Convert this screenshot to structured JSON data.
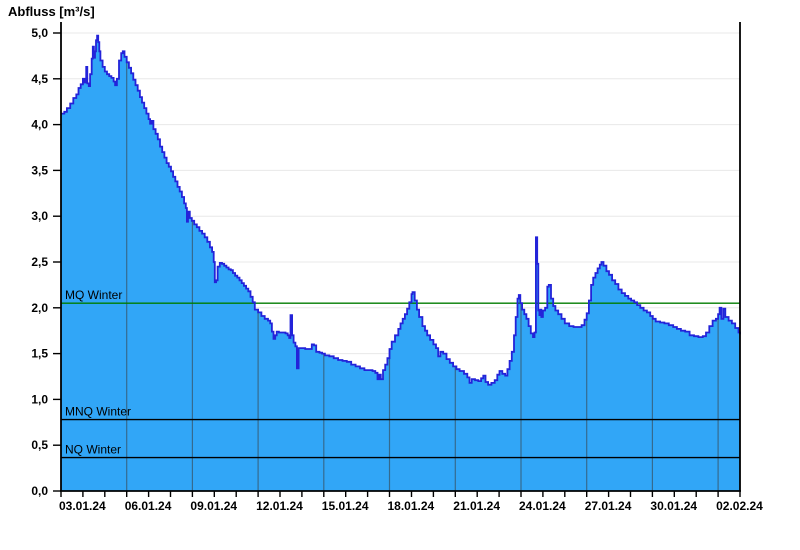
{
  "title": "Abfluss [m³/s]",
  "colors": {
    "fill": "#31a6f7",
    "line": "#2323d9",
    "grid_light": "#e8e8e8",
    "grid_vertical": "#3a3a3a",
    "axis": "#000000",
    "mq_line": "#007c00",
    "stat_line": "#000000"
  },
  "y_axis": {
    "tick_labels": [
      "0,0",
      "0,5",
      "1,0",
      "1,5",
      "2,0",
      "2,5",
      "3,0",
      "3,5",
      "4,0",
      "4,5",
      "5,0"
    ],
    "tick_values": [
      0,
      0.5,
      1,
      1.5,
      2,
      2.5,
      3,
      3.5,
      4,
      4.5,
      5
    ]
  },
  "x_axis": {
    "labels": [
      "03.01.24",
      "06.01.24",
      "09.01.24",
      "12.01.24",
      "15.01.24",
      "18.01.24",
      "21.01.24",
      "24.01.24",
      "27.01.24",
      "30.01.24",
      "02.02.24"
    ],
    "label_days": [
      0,
      3,
      6,
      9,
      12,
      15,
      18,
      21,
      24,
      27,
      30
    ],
    "total_days": 31
  },
  "chart_data": {
    "type": "area",
    "title": "Abfluss [m³/s]",
    "ylabel": "Abfluss [m³/s]",
    "xlabel": "",
    "ylim": [
      0,
      5
    ],
    "x_range_days": [
      0,
      31
    ],
    "x_start_date": "03.01.24",
    "grid": true,
    "interpolation": "step-after",
    "reference_lines": [
      {
        "id": "mq",
        "label": "MQ Winter",
        "value": 2.05,
        "color": "#007c00"
      },
      {
        "id": "mnq",
        "label": "MNQ Winter",
        "value": 0.78,
        "color": "#000000"
      },
      {
        "id": "nq",
        "label": "NQ Winter",
        "value": 0.365,
        "color": "#000000"
      }
    ],
    "series_name": "Abfluss",
    "points": [
      [
        0.0,
        4.12
      ],
      [
        0.15,
        4.14
      ],
      [
        0.27,
        4.18
      ],
      [
        0.42,
        4.23
      ],
      [
        0.56,
        4.29
      ],
      [
        0.7,
        4.33
      ],
      [
        0.8,
        4.4
      ],
      [
        0.9,
        4.44
      ],
      [
        1.0,
        4.5
      ],
      [
        1.08,
        4.46
      ],
      [
        1.15,
        4.63
      ],
      [
        1.2,
        4.45
      ],
      [
        1.27,
        4.42
      ],
      [
        1.33,
        4.55
      ],
      [
        1.4,
        4.72
      ],
      [
        1.45,
        4.85
      ],
      [
        1.5,
        4.73
      ],
      [
        1.55,
        4.8
      ],
      [
        1.6,
        4.92
      ],
      [
        1.65,
        4.97
      ],
      [
        1.7,
        4.9
      ],
      [
        1.75,
        4.8
      ],
      [
        1.8,
        4.7
      ],
      [
        1.9,
        4.63
      ],
      [
        2.0,
        4.58
      ],
      [
        2.1,
        4.55
      ],
      [
        2.2,
        4.53
      ],
      [
        2.3,
        4.51
      ],
      [
        2.4,
        4.47
      ],
      [
        2.47,
        4.43
      ],
      [
        2.55,
        4.5
      ],
      [
        2.65,
        4.7
      ],
      [
        2.75,
        4.78
      ],
      [
        2.82,
        4.8
      ],
      [
        2.9,
        4.74
      ],
      [
        3.0,
        4.68
      ],
      [
        3.1,
        4.62
      ],
      [
        3.2,
        4.56
      ],
      [
        3.3,
        4.49
      ],
      [
        3.4,
        4.43
      ],
      [
        3.5,
        4.37
      ],
      [
        3.6,
        4.3
      ],
      [
        3.7,
        4.24
      ],
      [
        3.8,
        4.18
      ],
      [
        3.9,
        4.12
      ],
      [
        4.0,
        4.06
      ],
      [
        4.07,
        4.01
      ],
      [
        4.14,
        4.04
      ],
      [
        4.22,
        3.95
      ],
      [
        4.32,
        3.9
      ],
      [
        4.42,
        3.84
      ],
      [
        4.52,
        3.76
      ],
      [
        4.62,
        3.7
      ],
      [
        4.72,
        3.64
      ],
      [
        4.82,
        3.58
      ],
      [
        4.92,
        3.54
      ],
      [
        5.02,
        3.49
      ],
      [
        5.12,
        3.43
      ],
      [
        5.22,
        3.38
      ],
      [
        5.32,
        3.32
      ],
      [
        5.42,
        3.27
      ],
      [
        5.52,
        3.21
      ],
      [
        5.62,
        3.14
      ],
      [
        5.7,
        3.09
      ],
      [
        5.75,
        2.94
      ],
      [
        5.8,
        3.05
      ],
      [
        5.88,
        2.98
      ],
      [
        5.97,
        2.95
      ],
      [
        6.08,
        2.91
      ],
      [
        6.2,
        2.88
      ],
      [
        6.32,
        2.84
      ],
      [
        6.44,
        2.81
      ],
      [
        6.56,
        2.77
      ],
      [
        6.68,
        2.72
      ],
      [
        6.8,
        2.66
      ],
      [
        6.9,
        2.61
      ],
      [
        6.97,
        2.5
      ],
      [
        7.02,
        2.28
      ],
      [
        7.08,
        2.3
      ],
      [
        7.15,
        2.45
      ],
      [
        7.25,
        2.49
      ],
      [
        7.35,
        2.48
      ],
      [
        7.45,
        2.46
      ],
      [
        7.55,
        2.44
      ],
      [
        7.65,
        2.42
      ],
      [
        7.75,
        2.41
      ],
      [
        7.85,
        2.38
      ],
      [
        7.95,
        2.35
      ],
      [
        8.05,
        2.33
      ],
      [
        8.15,
        2.3
      ],
      [
        8.25,
        2.27
      ],
      [
        8.35,
        2.24
      ],
      [
        8.45,
        2.21
      ],
      [
        8.55,
        2.18
      ],
      [
        8.65,
        2.12
      ],
      [
        8.75,
        2.06
      ],
      [
        8.85,
        1.98
      ],
      [
        9.0,
        1.95
      ],
      [
        9.15,
        1.91
      ],
      [
        9.3,
        1.88
      ],
      [
        9.45,
        1.86
      ],
      [
        9.55,
        1.83
      ],
      [
        9.63,
        1.74
      ],
      [
        9.7,
        1.66
      ],
      [
        9.78,
        1.7
      ],
      [
        9.85,
        1.74
      ],
      [
        9.95,
        1.73
      ],
      [
        10.1,
        1.73
      ],
      [
        10.25,
        1.72
      ],
      [
        10.35,
        1.7
      ],
      [
        10.42,
        1.67
      ],
      [
        10.48,
        1.92
      ],
      [
        10.55,
        1.7
      ],
      [
        10.62,
        1.62
      ],
      [
        10.7,
        1.58
      ],
      [
        10.77,
        1.34
      ],
      [
        10.85,
        1.56
      ],
      [
        11.0,
        1.56
      ],
      [
        11.15,
        1.55
      ],
      [
        11.3,
        1.55
      ],
      [
        11.45,
        1.6
      ],
      [
        11.55,
        1.59
      ],
      [
        11.65,
        1.52
      ],
      [
        11.8,
        1.51
      ],
      [
        11.92,
        1.5
      ],
      [
        12.05,
        1.48
      ],
      [
        12.25,
        1.47
      ],
      [
        12.45,
        1.45
      ],
      [
        12.65,
        1.43
      ],
      [
        12.85,
        1.42
      ],
      [
        13.05,
        1.41
      ],
      [
        13.25,
        1.38
      ],
      [
        13.45,
        1.36
      ],
      [
        13.65,
        1.34
      ],
      [
        13.85,
        1.32
      ],
      [
        14.05,
        1.32
      ],
      [
        14.22,
        1.31
      ],
      [
        14.35,
        1.29
      ],
      [
        14.45,
        1.22
      ],
      [
        14.53,
        1.27
      ],
      [
        14.6,
        1.22
      ],
      [
        14.7,
        1.32
      ],
      [
        14.8,
        1.38
      ],
      [
        14.9,
        1.45
      ],
      [
        15.0,
        1.55
      ],
      [
        15.1,
        1.63
      ],
      [
        15.25,
        1.7
      ],
      [
        15.4,
        1.77
      ],
      [
        15.5,
        1.83
      ],
      [
        15.6,
        1.88
      ],
      [
        15.7,
        1.93
      ],
      [
        15.8,
        1.99
      ],
      [
        15.9,
        2.06
      ],
      [
        16.0,
        2.15
      ],
      [
        16.05,
        2.17
      ],
      [
        16.15,
        2.08
      ],
      [
        16.25,
        1.98
      ],
      [
        16.35,
        1.9
      ],
      [
        16.5,
        1.8
      ],
      [
        16.62,
        1.75
      ],
      [
        16.72,
        1.7
      ],
      [
        16.85,
        1.65
      ],
      [
        17.0,
        1.6
      ],
      [
        17.12,
        1.56
      ],
      [
        17.22,
        1.47
      ],
      [
        17.32,
        1.52
      ],
      [
        17.45,
        1.5
      ],
      [
        17.6,
        1.44
      ],
      [
        17.75,
        1.4
      ],
      [
        17.9,
        1.36
      ],
      [
        18.05,
        1.33
      ],
      [
        18.2,
        1.31
      ],
      [
        18.4,
        1.28
      ],
      [
        18.55,
        1.24
      ],
      [
        18.65,
        1.18
      ],
      [
        18.75,
        1.22
      ],
      [
        18.9,
        1.21
      ],
      [
        19.05,
        1.2
      ],
      [
        19.18,
        1.23
      ],
      [
        19.28,
        1.26
      ],
      [
        19.38,
        1.19
      ],
      [
        19.5,
        1.16
      ],
      [
        19.65,
        1.18
      ],
      [
        19.8,
        1.21
      ],
      [
        19.92,
        1.27
      ],
      [
        20.02,
        1.31
      ],
      [
        20.15,
        1.28
      ],
      [
        20.28,
        1.26
      ],
      [
        20.38,
        1.33
      ],
      [
        20.48,
        1.42
      ],
      [
        20.58,
        1.52
      ],
      [
        20.68,
        1.7
      ],
      [
        20.76,
        1.9
      ],
      [
        20.84,
        2.1
      ],
      [
        20.9,
        2.14
      ],
      [
        20.97,
        2.05
      ],
      [
        21.05,
        1.98
      ],
      [
        21.15,
        1.93
      ],
      [
        21.25,
        1.88
      ],
      [
        21.35,
        1.8
      ],
      [
        21.45,
        1.72
      ],
      [
        21.55,
        1.68
      ],
      [
        21.62,
        1.73
      ],
      [
        21.68,
        2.77
      ],
      [
        21.74,
        2.48
      ],
      [
        21.79,
        1.97
      ],
      [
        21.84,
        1.92
      ],
      [
        21.88,
        1.98
      ],
      [
        21.93,
        1.9
      ],
      [
        22.0,
        1.97
      ],
      [
        22.1,
        2.0
      ],
      [
        22.2,
        2.23
      ],
      [
        22.27,
        2.25
      ],
      [
        22.37,
        2.1
      ],
      [
        22.47,
        2.02
      ],
      [
        22.57,
        1.97
      ],
      [
        22.7,
        1.93
      ],
      [
        22.85,
        1.88
      ],
      [
        23.0,
        1.83
      ],
      [
        23.2,
        1.8
      ],
      [
        23.4,
        1.79
      ],
      [
        23.6,
        1.79
      ],
      [
        23.77,
        1.81
      ],
      [
        23.9,
        1.87
      ],
      [
        24.0,
        1.94
      ],
      [
        24.1,
        2.08
      ],
      [
        24.2,
        2.25
      ],
      [
        24.3,
        2.33
      ],
      [
        24.4,
        2.38
      ],
      [
        24.5,
        2.43
      ],
      [
        24.6,
        2.47
      ],
      [
        24.67,
        2.5
      ],
      [
        24.77,
        2.46
      ],
      [
        24.9,
        2.4
      ],
      [
        25.02,
        2.36
      ],
      [
        25.16,
        2.3
      ],
      [
        25.3,
        2.26
      ],
      [
        25.45,
        2.2
      ],
      [
        25.6,
        2.16
      ],
      [
        25.75,
        2.13
      ],
      [
        25.9,
        2.1
      ],
      [
        26.03,
        2.08
      ],
      [
        26.17,
        2.06
      ],
      [
        26.3,
        2.03
      ],
      [
        26.45,
        2.0
      ],
      [
        26.6,
        1.97
      ],
      [
        26.75,
        1.95
      ],
      [
        26.9,
        1.91
      ],
      [
        27.02,
        1.88
      ],
      [
        27.15,
        1.85
      ],
      [
        27.35,
        1.84
      ],
      [
        27.55,
        1.83
      ],
      [
        27.75,
        1.81
      ],
      [
        27.95,
        1.79
      ],
      [
        28.12,
        1.77
      ],
      [
        28.3,
        1.75
      ],
      [
        28.5,
        1.74
      ],
      [
        28.7,
        1.7
      ],
      [
        28.9,
        1.69
      ],
      [
        29.1,
        1.68
      ],
      [
        29.3,
        1.69
      ],
      [
        29.45,
        1.73
      ],
      [
        29.6,
        1.8
      ],
      [
        29.75,
        1.86
      ],
      [
        29.9,
        1.88
      ],
      [
        30.0,
        1.93
      ],
      [
        30.07,
        2.0
      ],
      [
        30.15,
        1.88
      ],
      [
        30.24,
        1.99
      ],
      [
        30.33,
        1.9
      ],
      [
        30.48,
        1.86
      ],
      [
        30.63,
        1.83
      ],
      [
        30.78,
        1.78
      ],
      [
        30.93,
        1.73
      ],
      [
        31.0,
        1.71
      ]
    ]
  }
}
